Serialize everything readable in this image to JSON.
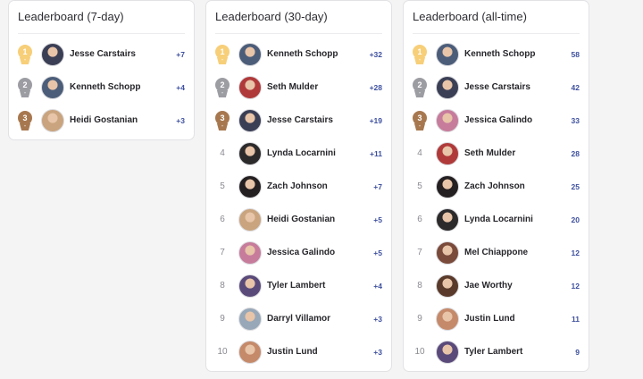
{
  "colors": {
    "gold": "#f7cf79",
    "silver": "#9c9ca3",
    "bronze": "#a7784f",
    "score": "#3d4f9e"
  },
  "boards": [
    {
      "title": "Leaderboard (7-day)",
      "rows": [
        {
          "rank": "1",
          "medal": "gold",
          "name": "Jesse Carstairs",
          "score": "+7",
          "avatar": "#3b3f55"
        },
        {
          "rank": "2",
          "medal": "silver",
          "name": "Kenneth Schopp",
          "score": "+4",
          "avatar": "#4b5d79"
        },
        {
          "rank": "3",
          "medal": "bronze",
          "name": "Heidi Gostanian",
          "score": "+3",
          "avatar": "#c9a47e"
        }
      ]
    },
    {
      "title": "Leaderboard (30-day)",
      "rows": [
        {
          "rank": "1",
          "medal": "gold",
          "name": "Kenneth Schopp",
          "score": "+32",
          "avatar": "#4b5d79"
        },
        {
          "rank": "2",
          "medal": "silver",
          "name": "Seth Mulder",
          "score": "+28",
          "avatar": "#b03a3a"
        },
        {
          "rank": "3",
          "medal": "bronze",
          "name": "Jesse Carstairs",
          "score": "+19",
          "avatar": "#3b3f55"
        },
        {
          "rank": "4",
          "medal": "",
          "name": "Lynda Locarnini",
          "score": "+11",
          "avatar": "#2c2a2b"
        },
        {
          "rank": "5",
          "medal": "",
          "name": "Zach Johnson",
          "score": "+7",
          "avatar": "#241f20"
        },
        {
          "rank": "6",
          "medal": "",
          "name": "Heidi Gostanian",
          "score": "+5",
          "avatar": "#c9a47e"
        },
        {
          "rank": "7",
          "medal": "",
          "name": "Jessica Galindo",
          "score": "+5",
          "avatar": "#c77c9c"
        },
        {
          "rank": "8",
          "medal": "",
          "name": "Tyler Lambert",
          "score": "+4",
          "avatar": "#5a4a7a"
        },
        {
          "rank": "9",
          "medal": "",
          "name": "Darryl Villamor",
          "score": "+3",
          "avatar": "#98a8b8"
        },
        {
          "rank": "10",
          "medal": "",
          "name": "Justin Lund",
          "score": "+3",
          "avatar": "#c58a6a"
        }
      ]
    },
    {
      "title": "Leaderboard (all-time)",
      "rows": [
        {
          "rank": "1",
          "medal": "gold",
          "name": "Kenneth Schopp",
          "score": "58",
          "avatar": "#4b5d79"
        },
        {
          "rank": "2",
          "medal": "silver",
          "name": "Jesse Carstairs",
          "score": "42",
          "avatar": "#3b3f55"
        },
        {
          "rank": "3",
          "medal": "bronze",
          "name": "Jessica Galindo",
          "score": "33",
          "avatar": "#c77c9c"
        },
        {
          "rank": "4",
          "medal": "",
          "name": "Seth Mulder",
          "score": "28",
          "avatar": "#b03a3a"
        },
        {
          "rank": "5",
          "medal": "",
          "name": "Zach Johnson",
          "score": "25",
          "avatar": "#241f20"
        },
        {
          "rank": "6",
          "medal": "",
          "name": "Lynda Locarnini",
          "score": "20",
          "avatar": "#2c2a2b"
        },
        {
          "rank": "7",
          "medal": "",
          "name": "Mel Chiappone",
          "score": "12",
          "avatar": "#7a4a3a"
        },
        {
          "rank": "8",
          "medal": "",
          "name": "Jae Worthy",
          "score": "12",
          "avatar": "#5a3a2a"
        },
        {
          "rank": "9",
          "medal": "",
          "name": "Justin Lund",
          "score": "11",
          "avatar": "#c58a6a"
        },
        {
          "rank": "10",
          "medal": "",
          "name": "Tyler Lambert",
          "score": "9",
          "avatar": "#5a4a7a"
        }
      ]
    }
  ]
}
